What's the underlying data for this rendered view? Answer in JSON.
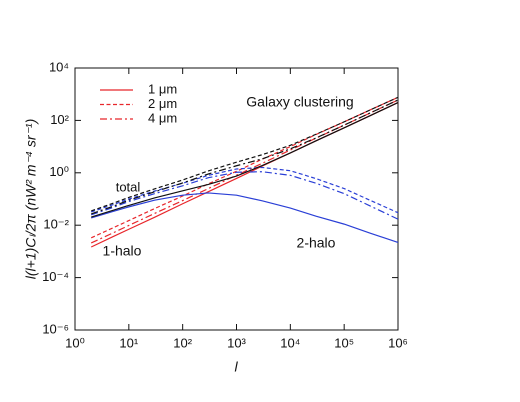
{
  "chart_data": {
    "type": "line",
    "annotations": [
      "Galaxy clustering",
      "total",
      "1-halo",
      "2-halo"
    ],
    "xlabel": "l",
    "ylabel": "l(l+1)Cₗ/2π (nW² m⁻⁴ sr⁻¹)",
    "xscale": "log",
    "yscale": "log",
    "xlim": [
      1,
      1000000
    ],
    "ylim": [
      1e-06,
      10000
    ],
    "xticks": [
      {
        "value": 1,
        "label": "10⁰"
      },
      {
        "value": 10,
        "label": "10¹"
      },
      {
        "value": 100,
        "label": "10²"
      },
      {
        "value": 1000,
        "label": "10³"
      },
      {
        "value": 10000,
        "label": "10⁴"
      },
      {
        "value": 100000,
        "label": "10⁵"
      },
      {
        "value": 1000000,
        "label": "10⁶"
      }
    ],
    "yticks": [
      {
        "value": 1e-06,
        "label": "10⁻⁶"
      },
      {
        "value": 0.0001,
        "label": "10⁻⁴"
      },
      {
        "value": 0.01,
        "label": "10⁻²"
      },
      {
        "value": 1,
        "label": "10⁰"
      },
      {
        "value": 100,
        "label": "10²"
      },
      {
        "value": 10000,
        "label": "10⁴"
      }
    ],
    "legend_position": "upper left",
    "legend": [
      {
        "name": "1 μm",
        "color": "#e8262b",
        "dash": "solid"
      },
      {
        "name": "2 μm",
        "color": "#e8262b",
        "dash": "dashed"
      },
      {
        "name": "4 μm",
        "color": "#e8262b",
        "dash": "dashdot"
      }
    ],
    "x": [
      2,
      5,
      10,
      30,
      100,
      300,
      1000,
      3000,
      10000,
      30000,
      100000,
      300000,
      1000000
    ],
    "series": [
      {
        "color": "#e8262b",
        "dash": "solid",
        "values": [
          0.00147,
          0.0036,
          0.007,
          0.02,
          0.066,
          0.19,
          0.61,
          1.8,
          5.7,
          16.6,
          52,
          150,
          480
        ]
      },
      {
        "color": "#e8262b",
        "dash": "dashed",
        "values": [
          0.0033,
          0.0078,
          0.015,
          0.043,
          0.13,
          0.38,
          1.14,
          3.3,
          10,
          29,
          88,
          248,
          760
        ]
      },
      {
        "color": "#e8262b",
        "dash": "dashdot",
        "values": [
          0.0021,
          0.005,
          0.0098,
          0.028,
          0.087,
          0.25,
          0.81,
          2.3,
          7.4,
          21,
          66,
          190,
          600
        ]
      },
      {
        "color": "#2a3fd6",
        "dash": "solid",
        "values": [
          0.019,
          0.033,
          0.05,
          0.09,
          0.14,
          0.17,
          0.14,
          0.085,
          0.045,
          0.022,
          0.011,
          0.005,
          0.0022
        ]
      },
      {
        "color": "#2a3fd6",
        "dash": "dashed",
        "values": [
          0.032,
          0.06,
          0.1,
          0.2,
          0.4,
          0.8,
          1.4,
          1.6,
          1.2,
          0.6,
          0.25,
          0.09,
          0.03
        ]
      },
      {
        "color": "#2a3fd6",
        "dash": "dashdot",
        "values": [
          0.025,
          0.047,
          0.08,
          0.16,
          0.32,
          0.65,
          1.05,
          1.1,
          0.8,
          0.4,
          0.16,
          0.055,
          0.017
        ]
      },
      {
        "color": "#111111",
        "dash": "solid",
        "values": [
          0.0205,
          0.0366,
          0.057,
          0.11,
          0.206,
          0.36,
          0.75,
          1.89,
          5.75,
          16.6,
          52,
          150,
          480
        ]
      },
      {
        "color": "#111111",
        "dash": "dashed",
        "values": [
          0.035,
          0.068,
          0.115,
          0.243,
          0.53,
          1.18,
          2.54,
          4.9,
          11.2,
          29.6,
          88,
          248,
          760
        ]
      },
      {
        "color": "#111111",
        "dash": "dashdot",
        "values": [
          0.027,
          0.052,
          0.09,
          0.188,
          0.41,
          0.9,
          1.86,
          3.4,
          8.2,
          21.4,
          66,
          190,
          600
        ]
      }
    ]
  }
}
